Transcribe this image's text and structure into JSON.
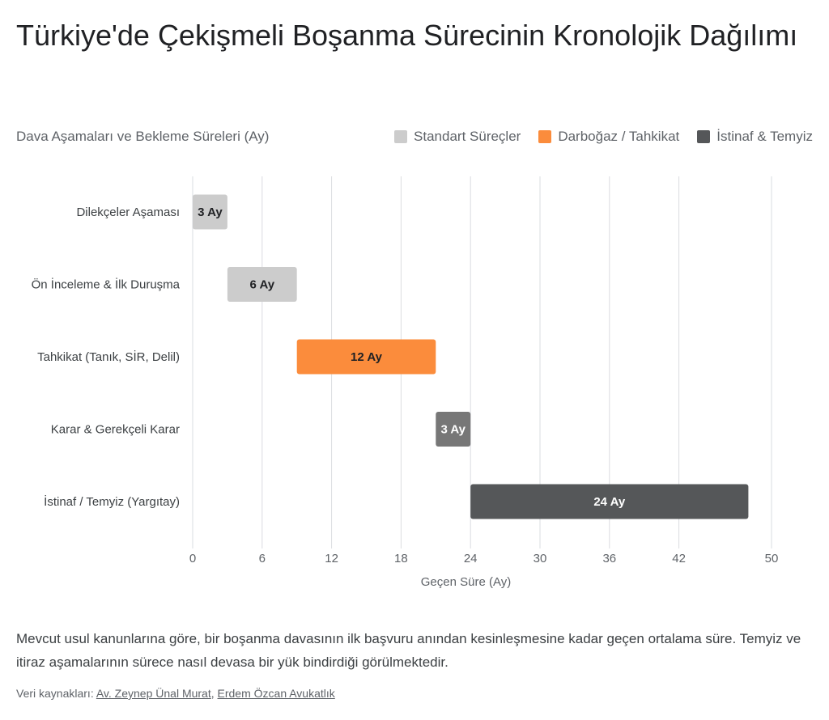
{
  "title": "Türkiye'de Çekişmeli Boşanma Sürecinin Kronolojik Dağılımı",
  "subtitle": "Dava Aşamaları ve Bekleme Süreleri (Ay)",
  "legend": [
    {
      "label": "Standart Süreçler",
      "color": "#cccccc"
    },
    {
      "label": "Darboğaz / Tahkikat",
      "color": "#fb8c3c"
    },
    {
      "label": "İstinaf & Temyiz",
      "color": "#555759"
    }
  ],
  "description": "Mevcut usul kanunlarına göre, bir boşanma davasının ilk başvuru anından kesinleşmesine kadar geçen ortalama süre. Temyiz ve itiraz aşamalarının sürece nasıl devasa bir yük bindirdiği görülmektedir.",
  "sources": {
    "prefix": "Veri kaynakları:",
    "links": [
      "Av. Zeynep Ünal Murat",
      "Erdem Özcan Avukatlık"
    ]
  },
  "chart_data": {
    "type": "bar",
    "orientation": "horizontal",
    "subtype": "floating-gantt",
    "xlabel": "Geçen Süre (Ay)",
    "xlim": [
      0,
      50
    ],
    "xticks": [
      0,
      6,
      12,
      18,
      24,
      30,
      36,
      42,
      50
    ],
    "grid": true,
    "legend_position": "top-right",
    "categories": [
      "Dilekçeler Aşaması",
      "Ön İnceleme & İlk Duruşma",
      "Tahkikat (Tanık, SİR, Delil)",
      "Karar & Gerekçeli Karar",
      "İstinaf / Temyiz (Yargıtay)"
    ],
    "bars": [
      {
        "start": 0,
        "end": 3,
        "label": "3 Ay",
        "color": "#cccccc",
        "text_color": "#202124"
      },
      {
        "start": 3,
        "end": 9,
        "label": "6 Ay",
        "color": "#cccccc",
        "text_color": "#202124"
      },
      {
        "start": 9,
        "end": 21,
        "label": "12 Ay",
        "color": "#fb8c3c",
        "text_color": "#202124"
      },
      {
        "start": 21,
        "end": 24,
        "label": "3 Ay",
        "color": "#777777",
        "text_color": "#ffffff"
      },
      {
        "start": 24,
        "end": 48,
        "label": "24 Ay",
        "color": "#555759",
        "text_color": "#ffffff"
      }
    ]
  }
}
